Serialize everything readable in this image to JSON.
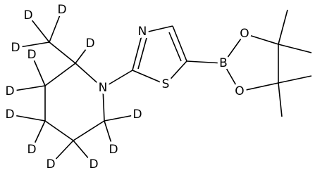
{
  "atoms": [
    "D",
    "D",
    "D",
    "D",
    "D",
    "D",
    "D",
    "D",
    "D",
    "D",
    "D",
    "D",
    "N",
    "N",
    "S",
    "B",
    "O",
    "O"
  ]
}
